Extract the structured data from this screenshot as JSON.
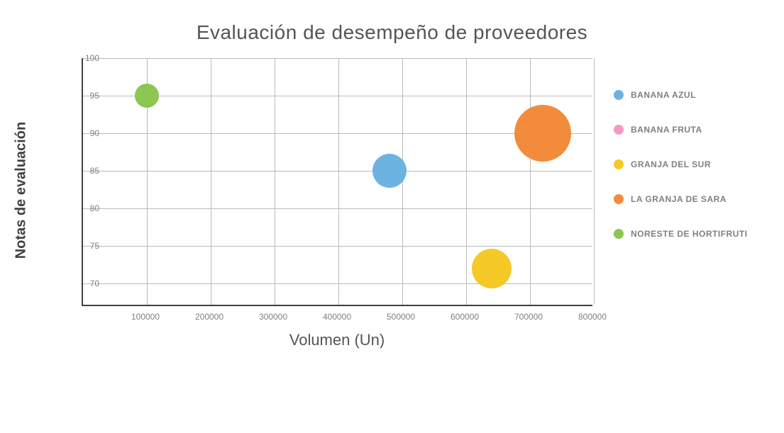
{
  "chart": {
    "type": "bubble",
    "title": "Evaluación de desempeño de proveedores",
    "x_axis": {
      "title": "Volumen (Un)",
      "min": 0,
      "max": 800000,
      "ticks": [
        100000,
        200000,
        300000,
        400000,
        500000,
        600000,
        700000,
        800000
      ],
      "tick_labels": [
        "100000",
        "200000",
        "300000",
        "400000",
        "500000",
        "600000",
        "700000",
        "800000"
      ]
    },
    "y_axis": {
      "title": "Notas de evaluación",
      "min": 67,
      "max": 100,
      "ticks": [
        70,
        75,
        80,
        85,
        90,
        95,
        100
      ],
      "tick_labels": [
        "70",
        "75",
        "80",
        "85",
        "90",
        "95",
        "100"
      ]
    },
    "series": [
      {
        "name": "BANANA AZUL",
        "color": "#6db3e2",
        "x": 480000,
        "y": 85,
        "size": 48
      },
      {
        "name": "BANANA FRUTA",
        "color": "#f29ac2",
        "x": null,
        "y": null,
        "size": null
      },
      {
        "name": "GRANJA DEL SUR",
        "color": "#f5c926",
        "x": 640000,
        "y": 72,
        "size": 56
      },
      {
        "name": "LA GRANJA DE SARA",
        "color": "#f38b3c",
        "x": 720000,
        "y": 90,
        "size": 80
      },
      {
        "name": "NORESTE DE HORTIFRUTI",
        "color": "#8dc653",
        "x": 100000,
        "y": 95,
        "size": 34
      }
    ],
    "style": {
      "background_color": "#ffffff",
      "grid_color": "#bbbbbb",
      "axis_color": "#404040",
      "title_color": "#555555",
      "tick_label_color": "#808080",
      "legend_text_color": "#808080",
      "title_fontsize": 28,
      "axis_title_fontsize": 22,
      "tick_fontsize": 12,
      "legend_fontsize": 12
    }
  }
}
